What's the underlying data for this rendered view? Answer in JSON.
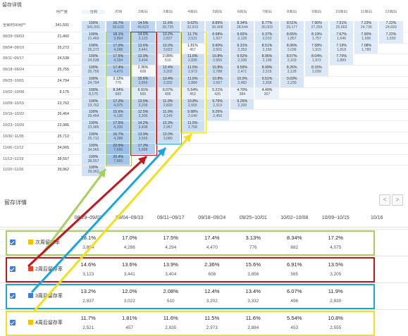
{
  "cohort_table": {
    "title": "留存详情",
    "col_headers": [
      "用户量",
      "当周",
      "次周",
      "2周后",
      "3周后",
      "4周后",
      "5周后",
      "6周后",
      "7周后",
      "8周后",
      "9周后",
      "10周后",
      "11周后",
      "12周后"
    ],
    "rows": [
      {
        "label": "全部时间用户",
        "users": "341,591",
        "cells": [
          [
            "100%",
            "341,591"
          ],
          [
            "16.7%",
            "56,625"
          ],
          [
            "14.5%",
            "49,623"
          ],
          [
            "11.6%",
            "39,725"
          ],
          [
            "9.62%",
            "32,915"
          ],
          [
            "8.89%",
            "30,406"
          ],
          [
            "8.34%",
            "28,544"
          ],
          [
            "8.77%",
            "30,003"
          ],
          [
            "8.51%",
            "29,177"
          ],
          [
            "7.96%",
            "27,259"
          ],
          [
            "7.51%",
            "25,663"
          ],
          [
            "7.23%",
            "24,736"
          ],
          [
            "7.22%",
            "24,693"
          ]
        ]
      },
      {
        "label": "08/29~09/03",
        "users": "21,460",
        "cells": [
          [
            "100%",
            "21,460"
          ],
          [
            "18.1%",
            "3,894"
          ],
          [
            "14.6%",
            "3,123"
          ],
          [
            "13.2%",
            "2,837"
          ],
          [
            "11.7%",
            "2,521"
          ],
          [
            "8.98%",
            "1,927"
          ],
          [
            "9.92%",
            "2,129"
          ],
          [
            "9.37%",
            "2,010"
          ],
          [
            "8.65%",
            "1,857"
          ],
          [
            "8.19%",
            "1,757"
          ],
          [
            "7.67%",
            "1,646"
          ],
          [
            "7.90%",
            "1,696"
          ],
          [
            "7.22%",
            "1,550"
          ]
        ]
      },
      {
        "label": "09/04~09/10",
        "users": "25,272",
        "cells": [
          [
            "100%",
            "25,272"
          ],
          [
            "17.0%",
            "4,288"
          ],
          [
            "13.6%",
            "3,441"
          ],
          [
            "12.0%",
            "3,022"
          ],
          [
            "1.81%",
            "457"
          ],
          [
            "9.90%",
            "2,501"
          ],
          [
            "9.31%",
            "2,353"
          ],
          [
            "8.51%",
            "2,150"
          ],
          [
            "8.06%",
            "2,036"
          ],
          [
            "7.58%",
            "1,915"
          ],
          [
            "7.19%",
            "1,818"
          ],
          [
            "7.08%",
            "1,789"
          ],
          []
        ]
      },
      {
        "label": "09/11~09/17",
        "users": "24,538",
        "cells": [
          [
            "100%",
            "24,538"
          ],
          [
            "17.5%",
            "4,294"
          ],
          [
            "13.9%",
            "3,404"
          ],
          [
            "2.08%",
            "510"
          ],
          [
            "11.6%",
            "2,835"
          ],
          [
            "10.8%",
            "2,655"
          ],
          [
            "9.52%",
            "2,336"
          ],
          [
            "8.96%",
            "2,199"
          ],
          [
            "8.57%",
            "2,103"
          ],
          [
            "8.04%",
            "1,972"
          ],
          [
            "7.70%",
            "1,889"
          ],
          [],
          []
        ]
      },
      {
        "label": "09/18~09/24",
        "users": "25,755",
        "cells": [
          [
            "100%",
            "25,755"
          ],
          [
            "17.4%",
            "4,470"
          ],
          [
            "2.36%",
            "608"
          ],
          [
            "12.4%",
            "3,202"
          ],
          [
            "11.5%",
            "2,973"
          ],
          [
            "10.8%",
            "2,788"
          ],
          [
            "9.59%",
            "2,471"
          ],
          [
            "8.99%",
            "2,315"
          ],
          [
            "8.26%",
            "2,128"
          ],
          [
            "8.15%",
            "2,099"
          ],
          [],
          [],
          []
        ]
      },
      {
        "label": "09/25~10/01",
        "users": "24,794",
        "cells": [
          [
            "100%",
            "24,794"
          ],
          [
            "3.13%",
            "776"
          ],
          [
            "15.6%",
            "3,856"
          ],
          [
            "13.4%",
            "3,332"
          ],
          [
            "11.6%",
            "2,884"
          ],
          [
            "10.8%",
            "2,667"
          ],
          [
            "10.0%",
            "2,482"
          ],
          [
            "9.51%",
            "2,358"
          ],
          [
            "9.03%",
            "2,239"
          ],
          [],
          [],
          [],
          []
        ]
      },
      {
        "label": "10/02~10/08",
        "users": "8,175",
        "cells": [
          [
            "100%",
            "8,175"
          ],
          [
            "8.34%",
            "682"
          ],
          [
            "6.91%",
            "565"
          ],
          [
            "6.07%",
            "496"
          ],
          [
            "5.54%",
            "453"
          ],
          [
            "5.21%",
            "426"
          ],
          [
            "4.70%",
            "384"
          ],
          [
            "4.49%",
            "367"
          ],
          [],
          [],
          [],
          [],
          []
        ]
      },
      {
        "label": "10/09~10/15",
        "users": "23,762",
        "cells": [
          [
            "100%",
            "23,762"
          ],
          [
            "17.2%",
            "4,075"
          ],
          [
            "13.5%",
            "3,205"
          ],
          [
            "11.9%",
            "2,830"
          ],
          [
            "10.8%",
            "2,555"
          ],
          [
            "9.76%",
            "2,319"
          ],
          [
            "9.26%",
            "2,200"
          ],
          [],
          [],
          [],
          [],
          [],
          []
        ]
      },
      {
        "label": "10/16~10/22",
        "users": "26,464",
        "cells": [
          [
            "100%",
            "26,464"
          ],
          [
            "15.6%",
            "4,130"
          ],
          [
            "12.5%",
            "3,305"
          ],
          [
            "11.9%",
            "3,149"
          ],
          [
            "9.98%",
            "2,640"
          ],
          [
            "9.26%",
            "2,450"
          ],
          [],
          [],
          [],
          [],
          [],
          [],
          []
        ]
      },
      {
        "label": "10/23~10/29",
        "users": "23,985",
        "cells": [
          [
            "100%",
            "23,985"
          ],
          [
            "17.5%",
            "4,200"
          ],
          [
            "14.2%",
            "3,408"
          ],
          [
            "12.3%",
            "2,957"
          ],
          [
            "11.5%",
            "2,758"
          ],
          [],
          [],
          [],
          [],
          [],
          [],
          [],
          []
        ]
      },
      {
        "label": "10/30~11/05",
        "users": "25,712",
        "cells": [
          [
            "100%",
            "25,712"
          ],
          [
            "16.7%",
            "4,288"
          ],
          [
            "13.9%",
            "3,565"
          ],
          [
            "12.0%",
            "3,080"
          ],
          [],
          [],
          [],
          [],
          [],
          [],
          [],
          [],
          []
        ]
      },
      {
        "label": "11/06~11/12",
        "users": "34,065",
        "cells": [
          [
            "100%",
            "34,065"
          ],
          [
            "22.5%",
            "7,655"
          ],
          [
            "17.3%",
            "5,888"
          ],
          [],
          [],
          [],
          [],
          [],
          [],
          [],
          [],
          [],
          []
        ]
      },
      {
        "label": "11/13~11/19",
        "users": "38,557",
        "cells": [
          [
            "100%",
            "38,557"
          ],
          [
            "20.4%",
            "7,865"
          ],
          [],
          [],
          [],
          [],
          [],
          [],
          [],
          [],
          [],
          [],
          []
        ]
      },
      {
        "label": "11/20~11/26",
        "users": "39,962",
        "cells": [
          [
            "100%",
            "39,962"
          ],
          [],
          [],
          [],
          [],
          [],
          [],
          [],
          [],
          [],
          [],
          [],
          []
        ]
      }
    ]
  },
  "detail": {
    "title": "留存详情",
    "pager": {
      "prev": "<",
      "next": ">"
    },
    "columns": [
      "08/29~09/03",
      "09/04~09/10",
      "09/11~09/17",
      "09/18~09/24",
      "09/25~10/01",
      "10/02~10/08",
      "10/09~10/15",
      "10/16"
    ],
    "rows": [
      {
        "label": "次周留存率",
        "color": "#a6d05a",
        "swatch": "#f0c400",
        "values": [
          [
            "18.1%",
            "3,894"
          ],
          [
            "17.0%",
            "4,288"
          ],
          [
            "17.5%",
            "4,294"
          ],
          [
            "17.4%",
            "4,470"
          ],
          [
            "3.13%",
            "776"
          ],
          [
            "8.34%",
            "682"
          ],
          [
            "17.2%",
            "4,075"
          ],
          [
            "",
            ""
          ]
        ]
      },
      {
        "label": "2周后留存率",
        "color": "#c4161c",
        "swatch": "#e0452a",
        "values": [
          [
            "14.6%",
            "3,123"
          ],
          [
            "13.6%",
            "3,441"
          ],
          [
            "13.9%",
            "3,404"
          ],
          [
            "2.36%",
            "608"
          ],
          [
            "15.6%",
            "3,856"
          ],
          [
            "6.91%",
            "565"
          ],
          [
            "13.5%",
            "3,205"
          ],
          [
            "",
            ""
          ]
        ]
      },
      {
        "label": "3周后留存率",
        "color": "#16a7e0",
        "swatch": "#3d7fd6",
        "values": [
          [
            "13.2%",
            "2,837"
          ],
          [
            "12.0%",
            "3,022"
          ],
          [
            "2.08%",
            "510"
          ],
          [
            "12.4%",
            "3,202"
          ],
          [
            "13.4%",
            "3,332"
          ],
          [
            "6.07%",
            "496"
          ],
          [
            "11.9%",
            "2,830"
          ],
          [
            "",
            ""
          ]
        ]
      },
      {
        "label": "4周后留存率",
        "color": "#f3df1a",
        "swatch": "#f0c400",
        "values": [
          [
            "11.7%",
            "2,521"
          ],
          [
            "1.81%",
            "457"
          ],
          [
            "11.6%",
            "2,835"
          ],
          [
            "11.5%",
            "2,973"
          ],
          [
            "11.6%",
            "2,884"
          ],
          [
            "5.54%",
            "453"
          ],
          [
            "10.8%",
            "2,555"
          ],
          [
            "",
            ""
          ]
        ]
      }
    ]
  },
  "colors": {
    "cell_blue": "#dcebf8",
    "header_blue": "#eef5fc",
    "checkbox": "#3d7fd6"
  }
}
